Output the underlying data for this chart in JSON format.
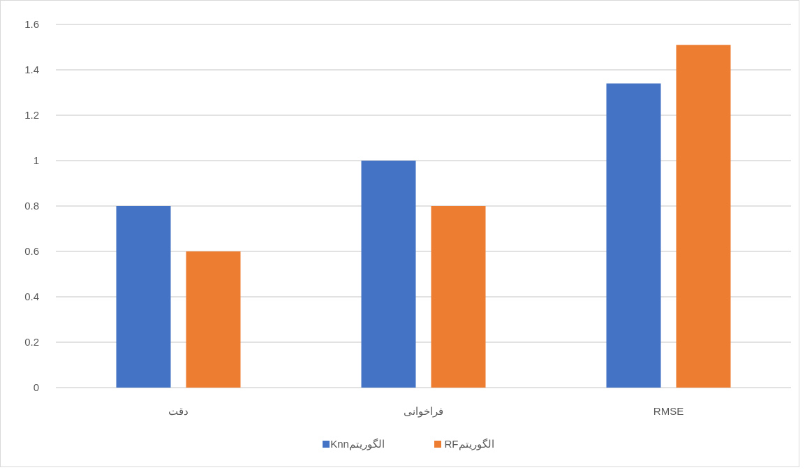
{
  "chart_data": {
    "type": "bar",
    "categories": [
      "دقت",
      "فراخوانی",
      "RMSE"
    ],
    "series": [
      {
        "name": "الگوریتمKnn",
        "color": "#4472c4",
        "values": [
          0.8,
          1,
          1.34
        ]
      },
      {
        "name": "الگوریتمRF",
        "color": "#ed7d31",
        "values": [
          0.6,
          0.8,
          1.51
        ]
      }
    ],
    "ylim": [
      0,
      1.6
    ],
    "yticks": [
      0,
      0.2,
      0.4,
      0.6,
      0.8,
      1,
      1.2,
      1.4,
      1.6
    ],
    "grid": "y",
    "legend": "bottom"
  }
}
